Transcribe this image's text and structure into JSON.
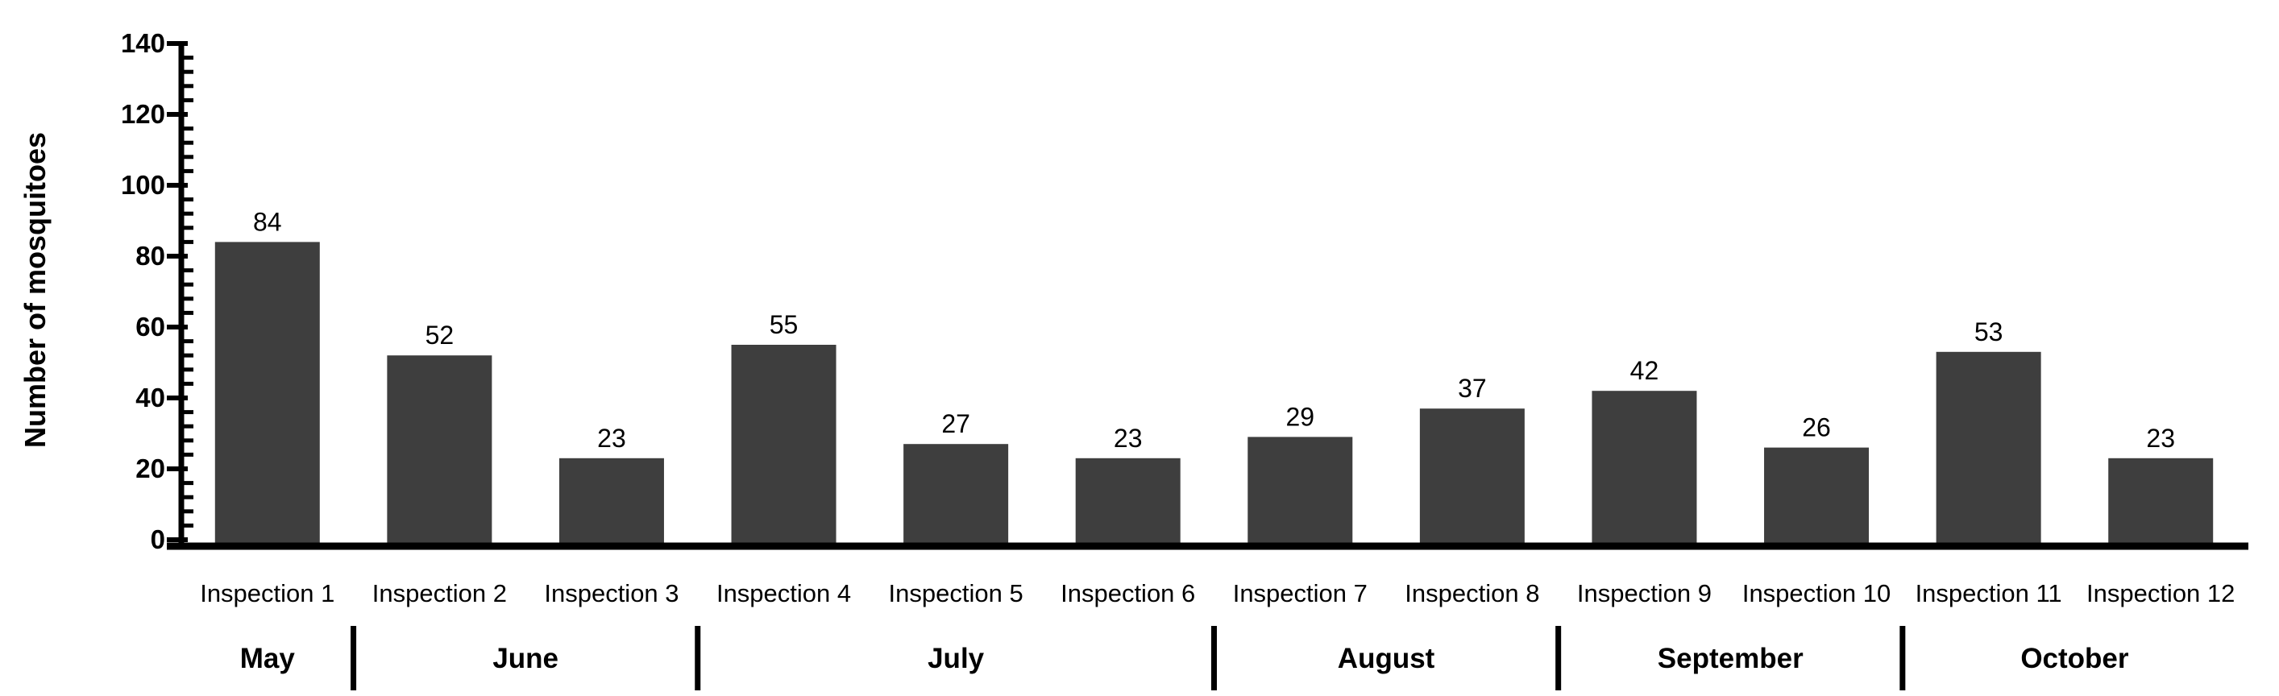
{
  "chart_data": {
    "type": "bar",
    "title": "",
    "ylabel": "Number of mosquitoes",
    "xlabel": "",
    "categories": [
      "Inspection 1",
      "Inspection 2",
      "Inspection 3",
      "Inspection 4",
      "Inspection 5",
      "Inspection 6",
      "Inspection 7",
      "Inspection 8",
      "Inspection 9",
      "Inspection 10",
      "Inspection 11",
      "Inspection 12"
    ],
    "values": [
      84,
      52,
      23,
      55,
      27,
      23,
      29,
      37,
      42,
      26,
      53,
      23
    ],
    "month_groups": [
      {
        "label": "May",
        "start": 1,
        "end": 1
      },
      {
        "label": "June",
        "start": 2,
        "end": 3
      },
      {
        "label": "July",
        "start": 4,
        "end": 6
      },
      {
        "label": "August",
        "start": 7,
        "end": 8
      },
      {
        "label": "September",
        "start": 9,
        "end": 10
      },
      {
        "label": "October",
        "start": 11,
        "end": 12
      }
    ],
    "ylim": [
      0,
      140
    ],
    "yticks": [
      0,
      20,
      40,
      60,
      80,
      100,
      120,
      140
    ],
    "minor_tick_interval": 4,
    "grid": false,
    "legend": null,
    "data_labels_shown": true,
    "bar_color": "#3e3e3e",
    "axis_color": "#000000",
    "text_color": "#000000",
    "background_color": "#ffffff"
  }
}
